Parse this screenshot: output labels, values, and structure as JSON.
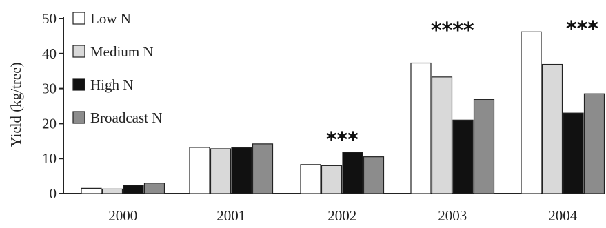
{
  "chart_data": {
    "type": "bar",
    "title": "",
    "xlabel": "",
    "ylabel": "Yield (kg/tree)",
    "ylim": [
      0,
      50
    ],
    "yticks": [
      0,
      10,
      20,
      30,
      40,
      50
    ],
    "categories": [
      "2000",
      "2001",
      "2002",
      "2003",
      "2004"
    ],
    "series": [
      {
        "name": "Low N",
        "color": "#ffffff",
        "values": [
          1.5,
          13.2,
          8.3,
          37.3,
          46.2
        ]
      },
      {
        "name": "Medium N",
        "color": "#d9d9d9",
        "values": [
          1.3,
          12.8,
          8.0,
          33.3,
          36.9
        ]
      },
      {
        "name": "High N",
        "color": "#111111",
        "values": [
          2.4,
          13.1,
          11.8,
          21.0,
          23.0
        ]
      },
      {
        "name": "Broadcast N",
        "color": "#8c8c8c",
        "values": [
          3.0,
          14.2,
          10.5,
          26.9,
          28.5
        ]
      }
    ],
    "annotations": [
      {
        "category": "2002",
        "text": "***"
      },
      {
        "category": "2003",
        "text": "****"
      },
      {
        "category": "2004",
        "text": "***"
      }
    ],
    "legend_position": "top-left",
    "grid": false
  }
}
